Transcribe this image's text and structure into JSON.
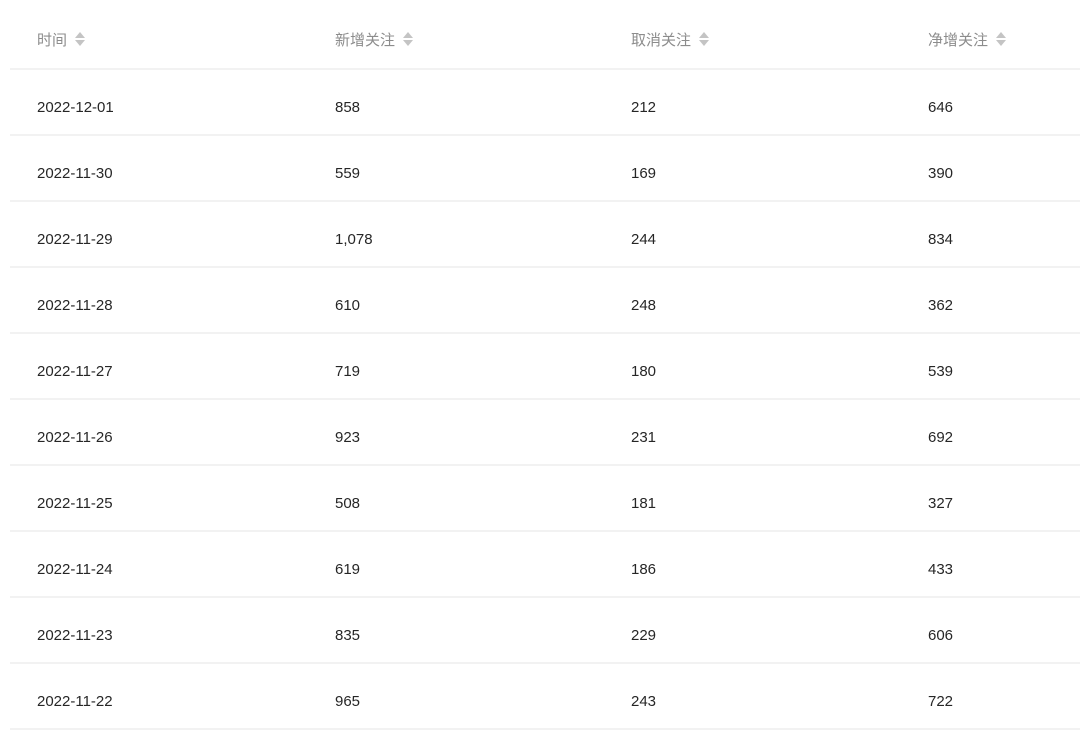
{
  "table": {
    "columns": [
      {
        "label": "时间",
        "sort_icon": "sort-icon"
      },
      {
        "label": "新增关注",
        "sort_icon": "sort-icon"
      },
      {
        "label": "取消关注",
        "sort_icon": "sort-icon"
      },
      {
        "label": "净增关注",
        "sort_icon": "sort-icon"
      }
    ],
    "rows": [
      [
        "2022-12-01",
        "858",
        "212",
        "646"
      ],
      [
        "2022-11-30",
        "559",
        "169",
        "390"
      ],
      [
        "2022-11-29",
        "1,078",
        "244",
        "834"
      ],
      [
        "2022-11-28",
        "610",
        "248",
        "362"
      ],
      [
        "2022-11-27",
        "719",
        "180",
        "539"
      ],
      [
        "2022-11-26",
        "923",
        "231",
        "692"
      ],
      [
        "2022-11-25",
        "508",
        "181",
        "327"
      ],
      [
        "2022-11-24",
        "619",
        "186",
        "433"
      ],
      [
        "2022-11-23",
        "835",
        "229",
        "606"
      ],
      [
        "2022-11-22",
        "965",
        "243",
        "722"
      ]
    ]
  },
  "colors": {
    "header_text": "#8c8c8c",
    "body_text": "#262626",
    "divider": "#f2f2f2",
    "sort_icon": "#c4c4c4",
    "background": "#ffffff"
  }
}
